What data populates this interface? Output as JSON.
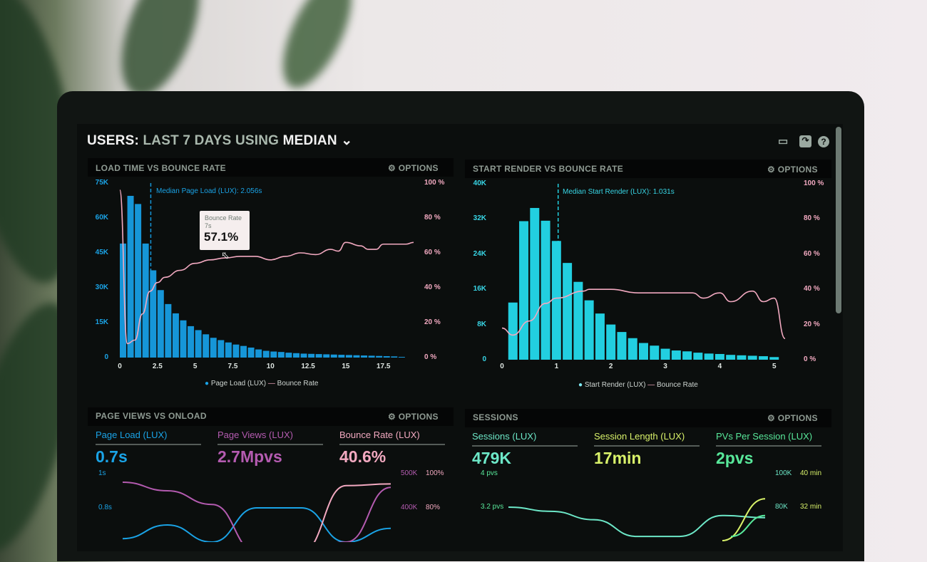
{
  "header": {
    "title_users": "USERS:",
    "title_range": "LAST 7 DAYS",
    "title_using": "USING",
    "title_stat": "MEDIAN",
    "icons": [
      "monitor-icon",
      "share-icon",
      "help-icon"
    ]
  },
  "options_label": "OPTIONS",
  "colors": {
    "page_load": "#1aa3e6",
    "start_render": "#2fd3e3",
    "bounce": "#f2a9c0",
    "page_views": "#b45bb0",
    "sessions": "#6de8c8",
    "session_length": "#d9f26a",
    "pvs": "#58e89a"
  },
  "tooltip": {
    "title": "Bounce Rate",
    "x": "7s",
    "value": "57.1%"
  },
  "chart_data": [
    {
      "type": "bar+line",
      "title": "LOAD TIME VS BOUNCE RATE",
      "annotation": "Median Page Load (LUX): 2.056s",
      "median": 2.056,
      "xlim": [
        0,
        19.5
      ],
      "ylim": [
        0,
        75000
      ],
      "y2lim": [
        0,
        100
      ],
      "x_ticks": [
        "0",
        "2.5",
        "5",
        "7.5",
        "10",
        "12.5",
        "15",
        "17.5"
      ],
      "y_ticks": [
        "75K",
        "60K",
        "45K",
        "30K",
        "15K",
        "0"
      ],
      "y2_ticks": [
        "100 %",
        "80 %",
        "60 %",
        "40 %",
        "20 %",
        "0 %"
      ],
      "legend": [
        "Page Load (LUX)",
        "Bounce Rate"
      ],
      "bars": {
        "name": "Page Load (LUX)",
        "x_step": 0.5,
        "values": [
          49000,
          69500,
          66000,
          49000,
          37500,
          29000,
          23000,
          19000,
          16000,
          13500,
          11800,
          10000,
          8500,
          7500,
          6500,
          5600,
          5000,
          4300,
          3500,
          2900,
          2600,
          2400,
          2100,
          1900,
          1700,
          1600,
          1500,
          1400,
          1300,
          1200,
          1100,
          1000,
          900,
          800,
          700,
          600,
          500,
          300
        ]
      },
      "line": {
        "name": "Bounce Rate",
        "points": [
          [
            0,
            96
          ],
          [
            0.5,
            8
          ],
          [
            1,
            10
          ],
          [
            1.5,
            25
          ],
          [
            2,
            38
          ],
          [
            2.5,
            43
          ],
          [
            3,
            46
          ],
          [
            4,
            50
          ],
          [
            5,
            54
          ],
          [
            6,
            56
          ],
          [
            7,
            57.1
          ],
          [
            8,
            58
          ],
          [
            9,
            58
          ],
          [
            10,
            56
          ],
          [
            11,
            58
          ],
          [
            12,
            60
          ],
          [
            13,
            59
          ],
          [
            14,
            62
          ],
          [
            14.5,
            61
          ],
          [
            15,
            66
          ],
          [
            16,
            64
          ],
          [
            16.5,
            62
          ],
          [
            17,
            62
          ],
          [
            17.5,
            65
          ],
          [
            18,
            65
          ],
          [
            19,
            65
          ],
          [
            19.5,
            66
          ]
        ]
      }
    },
    {
      "type": "bar+line",
      "title": "START RENDER VS BOUNCE RATE",
      "annotation": "Median Start Render (LUX): 1.031s",
      "median": 1.031,
      "xlim": [
        0,
        5.2
      ],
      "ylim": [
        0,
        40000
      ],
      "y2lim": [
        0,
        100
      ],
      "x_ticks": [
        "0",
        "1",
        "2",
        "3",
        "4",
        "5"
      ],
      "y_ticks": [
        "40K",
        "32K",
        "24K",
        "16K",
        "8K",
        "0"
      ],
      "y2_ticks": [
        "100 %",
        "80 %",
        "60 %",
        "40 %",
        "20 %",
        "0 %"
      ],
      "legend": [
        "Start Render (LUX)",
        "Bounce Rate"
      ],
      "bars": {
        "name": "Start Render (LUX)",
        "x_step": 0.2,
        "values": [
          13000,
          31500,
          34500,
          31600,
          27000,
          22000,
          17700,
          13500,
          10500,
          8000,
          6300,
          4900,
          3800,
          3200,
          2500,
          2100,
          1900,
          1600,
          1400,
          1300,
          1100,
          1000,
          900,
          800,
          600
        ]
      },
      "line": {
        "name": "Bounce Rate",
        "points": [
          [
            0,
            18
          ],
          [
            0.2,
            14
          ],
          [
            0.5,
            22
          ],
          [
            0.8,
            32
          ],
          [
            1,
            35
          ],
          [
            1.5,
            39
          ],
          [
            1.6,
            40
          ],
          [
            2,
            40
          ],
          [
            2.5,
            38
          ],
          [
            3,
            38
          ],
          [
            3.5,
            38
          ],
          [
            3.7,
            35
          ],
          [
            4,
            38
          ],
          [
            4.2,
            33
          ],
          [
            4.6,
            39
          ],
          [
            4.8,
            33
          ],
          [
            5,
            35
          ],
          [
            5.2,
            12
          ]
        ]
      }
    },
    {
      "type": "line",
      "title": "PAGE VIEWS VS ONLOAD",
      "metrics": [
        {
          "label": "Page Load (LUX)",
          "value": "0.7s"
        },
        {
          "label": "Page Views (LUX)",
          "value": "2.7Mpvs"
        },
        {
          "label": "Bounce Rate (LUX)",
          "value": "40.6%"
        }
      ],
      "y_ticks": [
        "1s",
        "0.8s"
      ],
      "y2_ticks": [
        "500K",
        "400K"
      ],
      "y3_ticks": [
        "100%",
        "80%"
      ],
      "series": [
        {
          "points": [
            [
              0,
              0.62
            ],
            [
              1,
              0.7
            ],
            [
              2,
              0.6
            ],
            [
              3,
              0.8
            ],
            [
              4,
              0.8
            ],
            [
              5,
              0.6
            ],
            [
              6,
              0.68
            ]
          ]
        },
        {
          "points": [
            [
              0,
              0.95
            ],
            [
              1,
              0.9
            ],
            [
              2,
              0.82
            ],
            [
              3,
              0.5
            ],
            [
              4,
              0.5
            ],
            [
              5,
              0.6
            ],
            [
              6,
              0.92
            ]
          ]
        },
        {
          "points": [
            [
              0,
              0.3
            ],
            [
              1,
              0.3
            ],
            [
              2,
              0.3
            ],
            [
              3,
              0.35
            ],
            [
              4,
              0.5
            ],
            [
              5,
              0.93
            ],
            [
              6,
              0.94
            ]
          ]
        }
      ]
    },
    {
      "type": "line",
      "title": "SESSIONS",
      "metrics": [
        {
          "label": "Sessions (LUX)",
          "value": "479K"
        },
        {
          "label": "Session Length (LUX)",
          "value": "17min"
        },
        {
          "label": "PVs Per Session (LUX)",
          "value": "2pvs"
        }
      ],
      "y_ticks": [
        "4 pvs",
        "3.2 pvs"
      ],
      "y2_ticks": [
        "100K",
        "80K"
      ],
      "y3_ticks": [
        "40 min",
        "32 min"
      ],
      "series": [
        {
          "points": [
            [
              0,
              3.2
            ],
            [
              1,
              3.1
            ],
            [
              2,
              2.9
            ],
            [
              3,
              2.5
            ],
            [
              4,
              2.5
            ],
            [
              5,
              3.0
            ],
            [
              6,
              2.95
            ]
          ]
        },
        {
          "points": [
            [
              5,
              2.4
            ],
            [
              6,
              3.4
            ]
          ]
        },
        {
          "points": [
            [
              5.2,
              2.5
            ],
            [
              6,
              3.0
            ]
          ]
        }
      ]
    }
  ]
}
